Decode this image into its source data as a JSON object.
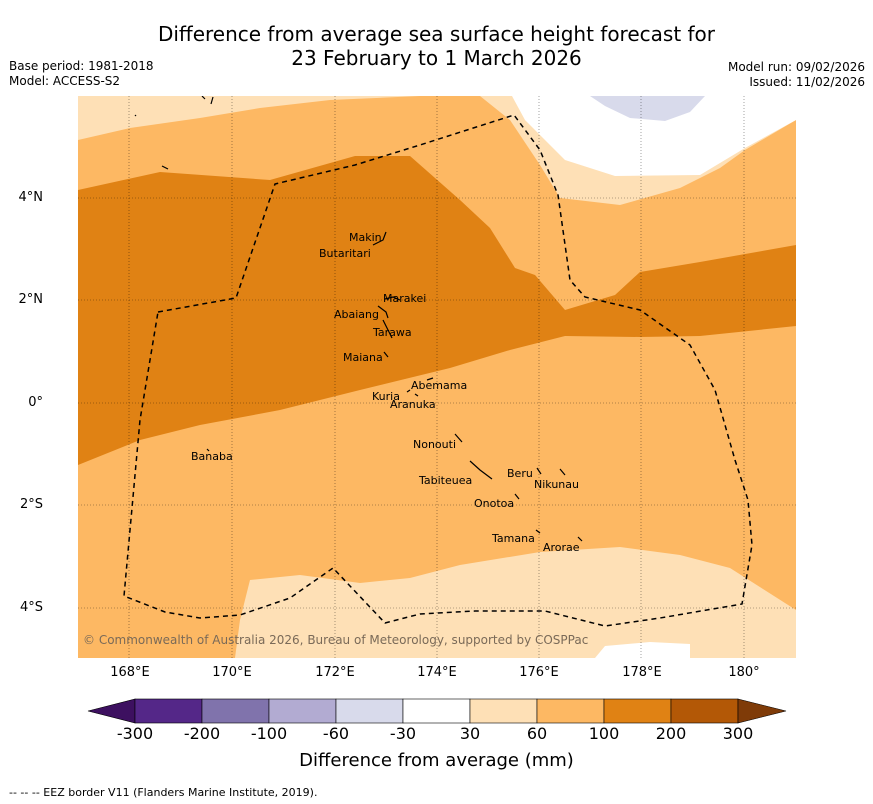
{
  "title_line1": "Difference from average sea surface height forecast for",
  "title_line2": "23 February to 1 March 2026",
  "meta_left": {
    "base_period": "Base period: 1981-2018",
    "model": "Model: ACCESS-S2"
  },
  "meta_right": {
    "model_run": "Model run: 09/02/2026",
    "issued": "Issued: 11/02/2026"
  },
  "map": {
    "lat_ticks": [
      "4°N",
      "2°N",
      "0°",
      "2°S",
      "4°S"
    ],
    "lon_ticks": [
      "168°E",
      "170°E",
      "172°E",
      "174°E",
      "176°E",
      "178°E",
      "180°"
    ],
    "copyright": "© Commonwealth of Australia 2026, Bureau of Meteorology, supported by COSPPac",
    "islands": [
      "Makin",
      "Butaritari",
      "Marakei",
      "Abaiang",
      "Tarawa",
      "Maiana",
      "Abemama",
      "Kuria",
      "Aranuka",
      "Nonouti",
      "Banaba",
      "Tabiteuea",
      "Beru",
      "Nikunau",
      "Onotoa",
      "Tamana",
      "Arorae"
    ]
  },
  "colorbar": {
    "label": "Difference from average (mm)",
    "ticks": [
      "-300",
      "-200",
      "-100",
      "-60",
      "-30",
      "30",
      "60",
      "100",
      "200",
      "300"
    ],
    "colors": [
      "#3d1060",
      "#542788",
      "#8073ac",
      "#b2abd2",
      "#d8daeb",
      "#ffffff",
      "#fee0b6",
      "#fdb863",
      "#e08214",
      "#b35806",
      "#7f3b08"
    ]
  },
  "footer": "--  --  -- EEZ border V11 (Flanders Marine Institute, 2019)."
}
